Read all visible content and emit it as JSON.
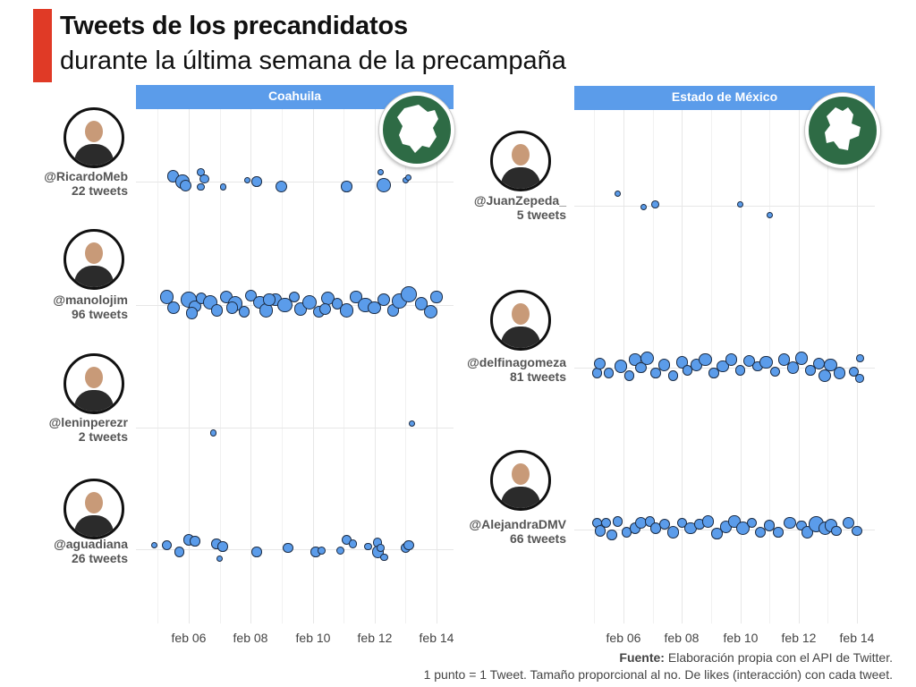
{
  "title": "Tweets de los precandidatos",
  "subtitle": "durante la última semana de la precampaña",
  "colors": {
    "accent": "#e03a26",
    "panel_header": "#5b9cea",
    "dot_fill": "#5b9cea",
    "dot_border": "#1c2c44",
    "badge": "#2e6b45"
  },
  "source": {
    "bold": "Fuente:",
    "text": " Elaboración propia con el API de Twitter.",
    "note": "1 punto = 1 Tweet. Tamaño proporcional al no. De likes (interacción) con cada tweet."
  },
  "chart_data": [
    {
      "type": "scatter",
      "panel": "Coahuila",
      "badge_icon": "coahuila-map-icon",
      "x_ticks": [
        "feb 06",
        "feb 08",
        "feb 10",
        "feb 12",
        "feb 14"
      ],
      "candidates": [
        {
          "handle": "@RicardoMeb",
          "count_label": "22 tweets",
          "avatar_icon": "ricardomeb-avatar",
          "tweets": [
            [
              5.5,
              0.2,
              3
            ],
            [
              5.8,
              0,
              3.5
            ],
            [
              6.4,
              0.35,
              2
            ],
            [
              6.5,
              0.1,
              2.4
            ],
            [
              6.4,
              -0.2,
              2
            ],
            [
              7.1,
              -0.2,
              1.6
            ],
            [
              7.9,
              0.06,
              1.6
            ],
            [
              8.2,
              0,
              2.6
            ],
            [
              9.0,
              -0.18,
              3
            ],
            [
              11.1,
              -0.18,
              2.8
            ],
            [
              12.2,
              0.35,
              1.6
            ],
            [
              12.3,
              -0.12,
              3.6
            ],
            [
              13.0,
              0.05,
              1.6
            ],
            [
              13.1,
              0.15,
              1.6
            ],
            [
              5.9,
              -0.15,
              3
            ]
          ]
        },
        {
          "handle": "@manolojim",
          "count_label": "96 tweets",
          "avatar_icon": "manolojim-avatar",
          "tweets": [
            [
              5.3,
              0.3,
              3.5
            ],
            [
              5.5,
              -0.1,
              3.2
            ],
            [
              6.0,
              0.2,
              4
            ],
            [
              6.2,
              -0.05,
              3
            ],
            [
              6.4,
              0.25,
              2.8
            ],
            [
              6.7,
              0.1,
              3.6
            ],
            [
              6.9,
              -0.2,
              3
            ],
            [
              7.2,
              0.3,
              3.2
            ],
            [
              7.5,
              0.05,
              3.8
            ],
            [
              7.8,
              -0.25,
              2.8
            ],
            [
              8.0,
              0.35,
              3
            ],
            [
              8.3,
              0.1,
              3.4
            ],
            [
              8.5,
              -0.2,
              3.6
            ],
            [
              8.8,
              0.2,
              3
            ],
            [
              9.1,
              0,
              3.8
            ],
            [
              9.4,
              0.3,
              2.8
            ],
            [
              9.6,
              -0.15,
              3.2
            ],
            [
              9.9,
              0.1,
              3.6
            ],
            [
              10.2,
              -0.25,
              3
            ],
            [
              10.5,
              0.25,
              3.4
            ],
            [
              10.8,
              0.05,
              2.8
            ],
            [
              11.1,
              -0.2,
              3.6
            ],
            [
              11.4,
              0.3,
              3
            ],
            [
              11.7,
              0,
              3.8
            ],
            [
              12.0,
              -0.1,
              3.4
            ],
            [
              12.3,
              0.2,
              3.2
            ],
            [
              12.6,
              -0.2,
              3
            ],
            [
              12.8,
              0.15,
              3.8
            ],
            [
              13.1,
              0.4,
              4
            ],
            [
              13.5,
              0.05,
              3.2
            ],
            [
              13.8,
              -0.25,
              3.4
            ],
            [
              14.0,
              0.3,
              3
            ],
            [
              6.1,
              -0.3,
              3
            ],
            [
              7.4,
              -0.1,
              3
            ],
            [
              8.6,
              0.2,
              3
            ],
            [
              10.4,
              -0.15,
              3
            ]
          ]
        },
        {
          "handle": "@leninperezr",
          "count_label": "2 tweets",
          "avatar_icon": "leninperezr-avatar",
          "tweets": [
            [
              6.8,
              -0.2,
              1.6
            ],
            [
              13.2,
              0.15,
              1.6
            ]
          ]
        },
        {
          "handle": "@aguadiana",
          "count_label": "26 tweets",
          "avatar_icon": "aguadiana-avatar",
          "tweets": [
            [
              4.9,
              0.15,
              1.6
            ],
            [
              5.3,
              0.15,
              2.6
            ],
            [
              5.7,
              -0.1,
              2.6
            ],
            [
              6.0,
              0.35,
              2.8
            ],
            [
              6.2,
              0.3,
              2.6
            ],
            [
              6.9,
              0.2,
              2.6
            ],
            [
              7.1,
              0.1,
              2.6
            ],
            [
              7.0,
              -0.35,
              1.6
            ],
            [
              8.2,
              -0.1,
              2.6
            ],
            [
              9.2,
              0.05,
              2.6
            ],
            [
              10.1,
              -0.1,
              2.6
            ],
            [
              10.3,
              -0.05,
              2
            ],
            [
              10.9,
              -0.05,
              2.2
            ],
            [
              11.1,
              0.35,
              2.6
            ],
            [
              11.3,
              0.2,
              2.2
            ],
            [
              11.8,
              0.1,
              2
            ],
            [
              12.1,
              0.25,
              2.4
            ],
            [
              12.1,
              -0.1,
              3
            ],
            [
              12.2,
              0.05,
              2
            ],
            [
              12.3,
              -0.3,
              2
            ],
            [
              13.0,
              0.05,
              2.6
            ],
            [
              13.1,
              0.15,
              2.6
            ]
          ]
        }
      ]
    },
    {
      "type": "scatter",
      "panel": "Estado de México",
      "badge_icon": "edomex-map-icon",
      "x_ticks": [
        "feb 06",
        "feb 08",
        "feb 10",
        "feb 12",
        "feb 14"
      ],
      "candidates": [
        {
          "handle": "@JuanZepeda_",
          "count_label": "5 tweets",
          "avatar_icon": "juanzepeda-avatar",
          "tweets": [
            [
              5.8,
              0.45,
              1.6
            ],
            [
              6.7,
              -0.05,
              1.6
            ],
            [
              7.1,
              0.05,
              2
            ],
            [
              10.0,
              0.05,
              1.6
            ],
            [
              11.0,
              -0.35,
              1.6
            ]
          ]
        },
        {
          "handle": "@delfinagomeza",
          "count_label": "81 tweets",
          "avatar_icon": "delfinagomeza-avatar",
          "tweets": [
            [
              5.1,
              -0.2,
              2.6
            ],
            [
              5.2,
              0.15,
              3
            ],
            [
              5.5,
              -0.2,
              2.6
            ],
            [
              5.9,
              0.05,
              3.2
            ],
            [
              6.2,
              -0.3,
              2.6
            ],
            [
              6.4,
              0.3,
              3
            ],
            [
              6.6,
              0,
              2.8
            ],
            [
              6.8,
              0.35,
              3.4
            ],
            [
              7.1,
              -0.2,
              2.6
            ],
            [
              7.4,
              0.1,
              3
            ],
            [
              7.7,
              -0.3,
              2.6
            ],
            [
              8.0,
              0.2,
              3
            ],
            [
              8.2,
              -0.1,
              2.6
            ],
            [
              8.5,
              0.1,
              3
            ],
            [
              8.8,
              0.3,
              3.4
            ],
            [
              9.1,
              -0.2,
              2.6
            ],
            [
              9.4,
              0.05,
              3
            ],
            [
              9.7,
              0.3,
              3
            ],
            [
              10.0,
              -0.1,
              2.6
            ],
            [
              10.3,
              0.25,
              3
            ],
            [
              10.6,
              0.05,
              2.6
            ],
            [
              10.9,
              0.2,
              3.4
            ],
            [
              11.2,
              -0.15,
              2.6
            ],
            [
              11.5,
              0.3,
              3
            ],
            [
              11.8,
              0,
              3
            ],
            [
              12.1,
              0.35,
              3.4
            ],
            [
              12.4,
              -0.1,
              2.6
            ],
            [
              12.7,
              0.15,
              3
            ],
            [
              12.9,
              -0.3,
              3.2
            ],
            [
              13.1,
              0.1,
              3.4
            ],
            [
              13.4,
              -0.2,
              3
            ],
            [
              13.9,
              -0.15,
              2.6
            ],
            [
              14.1,
              0.35,
              2
            ],
            [
              14.1,
              -0.4,
              2.2
            ]
          ]
        },
        {
          "handle": "@AlejandraDMV",
          "count_label": "66 tweets",
          "avatar_icon": "alejandradmv-avatar",
          "tweets": [
            [
              5.1,
              0.25,
              2.6
            ],
            [
              5.2,
              -0.05,
              2.8
            ],
            [
              5.4,
              0.25,
              2.6
            ],
            [
              5.6,
              -0.2,
              2.6
            ],
            [
              5.8,
              0.3,
              2.6
            ],
            [
              6.1,
              -0.1,
              2.6
            ],
            [
              6.4,
              0.05,
              2.8
            ],
            [
              6.6,
              0.25,
              3
            ],
            [
              6.9,
              0.3,
              2.6
            ],
            [
              7.1,
              0.05,
              2.8
            ],
            [
              7.4,
              0.2,
              2.8
            ],
            [
              7.7,
              -0.1,
              3
            ],
            [
              8.0,
              0.25,
              2.6
            ],
            [
              8.3,
              0.05,
              3
            ],
            [
              8.6,
              0.2,
              2.6
            ],
            [
              8.9,
              0.3,
              3
            ],
            [
              9.2,
              -0.15,
              2.8
            ],
            [
              9.5,
              0.1,
              3
            ],
            [
              9.8,
              0.3,
              3
            ],
            [
              10.1,
              0.05,
              3.4
            ],
            [
              10.4,
              0.25,
              2.6
            ],
            [
              10.7,
              -0.1,
              2.8
            ],
            [
              11.0,
              0.15,
              2.8
            ],
            [
              11.3,
              -0.1,
              2.6
            ],
            [
              11.7,
              0.25,
              3
            ],
            [
              12.1,
              0.15,
              2.6
            ],
            [
              12.3,
              -0.1,
              3
            ],
            [
              12.6,
              0.2,
              4
            ],
            [
              12.9,
              0.05,
              3.4
            ],
            [
              13.1,
              0.15,
              3.2
            ],
            [
              13.3,
              -0.05,
              2.6
            ],
            [
              13.7,
              0.25,
              3
            ],
            [
              14.0,
              -0.05,
              2.6
            ]
          ]
        }
      ]
    }
  ]
}
